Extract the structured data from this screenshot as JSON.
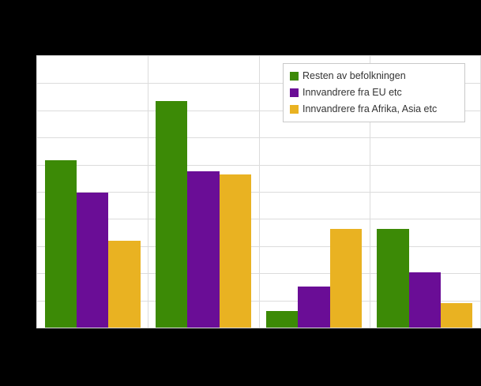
{
  "chart_data": {
    "type": "bar",
    "categories": [
      "",
      "",
      "",
      ""
    ],
    "series": [
      {
        "name": "Resten av befolkningen",
        "color": "#3C8A06",
        "values": [
          61.6,
          83.4,
          6.1,
          36.4
        ]
      },
      {
        "name": "Innvandrere fra EU etc",
        "color": "#6A0D96",
        "values": [
          49.6,
          57.6,
          15.0,
          20.3
        ]
      },
      {
        "name": "Innvandrere fra Afrika, Asia etc",
        "color": "#E9B222",
        "values": [
          32.1,
          56.4,
          36.3,
          9.0
        ]
      }
    ],
    "title": "",
    "xlabel": "",
    "ylabel": "",
    "ylim": [
      0,
      100
    ],
    "ytick_step": 10,
    "grid": true,
    "x_gridlines_at_category_boundaries": true,
    "legend_position": "top-right",
    "axis_tick_labels_visible": false,
    "title_visible": false
  },
  "colors": {
    "background": "#000000",
    "plot_background": "#FFFFFF",
    "gridline": "#DCDCDC",
    "legend_border": "#C9C9C9",
    "legend_text": "#333333"
  }
}
